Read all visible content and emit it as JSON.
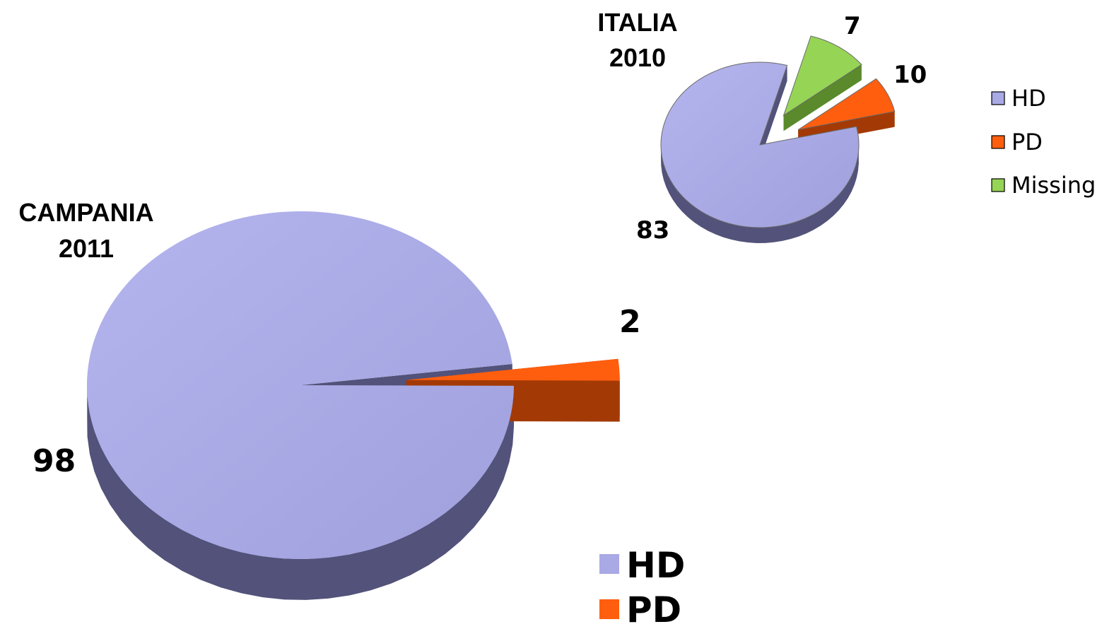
{
  "colors": {
    "HD": "#a9a9e6",
    "HD_side": "#52527a",
    "PD": "#ff5e0e",
    "PD_side": "#a33a06",
    "Missing": "#96d455",
    "Missing_side": "#5a8a2c"
  },
  "chart_data": [
    {
      "type": "pie",
      "title": [
        "CAMPANIA",
        "2011"
      ],
      "labels": [
        "HD",
        "PD"
      ],
      "values": [
        98,
        2
      ],
      "value_labels": [
        "98",
        "2"
      ],
      "exploded": [
        "PD"
      ],
      "legend": {
        "placement": "bottom-right",
        "entries": [
          "HD",
          "PD"
        ]
      }
    },
    {
      "type": "pie",
      "title": [
        "ITALIA",
        "2010"
      ],
      "labels": [
        "HD",
        "PD",
        "Missing"
      ],
      "values": [
        83,
        7,
        10
      ],
      "value_labels": [
        "83",
        "7",
        "10"
      ],
      "exploded": [
        "PD",
        "Missing"
      ],
      "legend": {
        "placement": "right",
        "entries": [
          "HD",
          "PD",
          "Missing"
        ]
      }
    }
  ]
}
